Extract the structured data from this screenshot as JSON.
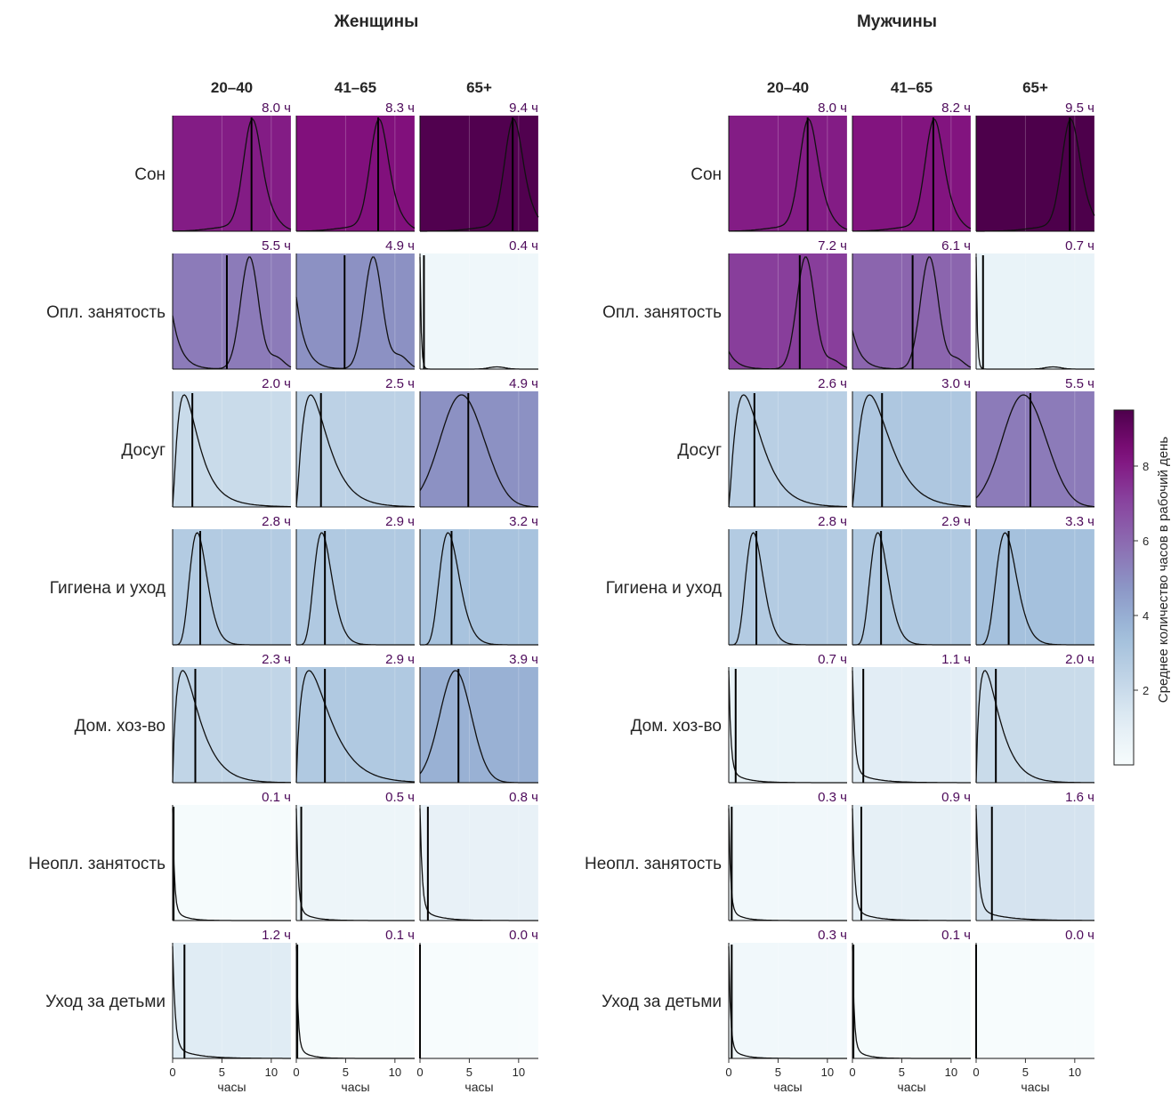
{
  "chart_data": {
    "type": "density-grid",
    "xlabel": "часы",
    "xticks": [
      0,
      5,
      10
    ],
    "xlim": [
      0,
      12
    ],
    "grid": true,
    "colorbar": {
      "label": "Среднее количество часов в рабочий день",
      "ticks": [
        2,
        4,
        6,
        8
      ],
      "range": [
        0,
        9.5
      ],
      "colormap": "BuPu",
      "placement": "right"
    },
    "activities": [
      "Сон",
      "Опл. занятость",
      "Досуг",
      "Гигиена и уход",
      "Дом. хоз-во",
      "Неопл. занятость",
      "Уход за детьми"
    ],
    "age_groups": [
      "20–40",
      "41–65",
      "65+"
    ],
    "groups": [
      {
        "title": "Женщины",
        "rows": [
          {
            "activity": "Сон",
            "values": [
              8.0,
              8.3,
              9.4
            ],
            "labels": [
              "8.0 ч",
              "8.3 ч",
              "9.4 ч"
            ]
          },
          {
            "activity": "Опл. занятость",
            "values": [
              5.5,
              4.9,
              0.4
            ],
            "labels": [
              "5.5 ч",
              "4.9 ч",
              "0.4 ч"
            ]
          },
          {
            "activity": "Досуг",
            "values": [
              2.0,
              2.5,
              4.9
            ],
            "labels": [
              "2.0 ч",
              "2.5 ч",
              "4.9 ч"
            ]
          },
          {
            "activity": "Гигиена и уход",
            "values": [
              2.8,
              2.9,
              3.2
            ],
            "labels": [
              "2.8 ч",
              "2.9 ч",
              "3.2 ч"
            ]
          },
          {
            "activity": "Дом. хоз-во",
            "values": [
              2.3,
              2.9,
              3.9
            ],
            "labels": [
              "2.3 ч",
              "2.9 ч",
              "3.9 ч"
            ]
          },
          {
            "activity": "Неопл. занятость",
            "values": [
              0.1,
              0.5,
              0.8
            ],
            "labels": [
              "0.1 ч",
              "0.5 ч",
              "0.8 ч"
            ]
          },
          {
            "activity": "Уход за детьми",
            "values": [
              1.2,
              0.1,
              0.0
            ],
            "labels": [
              "1.2 ч",
              "0.1 ч",
              "0.0 ч"
            ]
          }
        ]
      },
      {
        "title": "Мужчины",
        "rows": [
          {
            "activity": "Сон",
            "values": [
              8.0,
              8.2,
              9.5
            ],
            "labels": [
              "8.0 ч",
              "8.2 ч",
              "9.5 ч"
            ]
          },
          {
            "activity": "Опл. занятость",
            "values": [
              7.2,
              6.1,
              0.7
            ],
            "labels": [
              "7.2 ч",
              "6.1 ч",
              "0.7 ч"
            ]
          },
          {
            "activity": "Досуг",
            "values": [
              2.6,
              3.0,
              5.5
            ],
            "labels": [
              "2.6 ч",
              "3.0 ч",
              "5.5 ч"
            ]
          },
          {
            "activity": "Гигиена и уход",
            "values": [
              2.8,
              2.9,
              3.3
            ],
            "labels": [
              "2.8 ч",
              "2.9 ч",
              "3.3 ч"
            ]
          },
          {
            "activity": "Дом. хоз-во",
            "values": [
              0.7,
              1.1,
              2.0
            ],
            "labels": [
              "0.7 ч",
              "1.1 ч",
              "2.0 ч"
            ]
          },
          {
            "activity": "Неопл. занятость",
            "values": [
              0.3,
              0.9,
              1.6
            ],
            "labels": [
              "0.3 ч",
              "0.9 ч",
              "1.6 ч"
            ]
          },
          {
            "activity": "Уход за детьми",
            "values": [
              0.3,
              0.1,
              0.0
            ],
            "labels": [
              "0.3 ч",
              "0.1 ч",
              "0.0 ч"
            ]
          }
        ]
      }
    ]
  }
}
